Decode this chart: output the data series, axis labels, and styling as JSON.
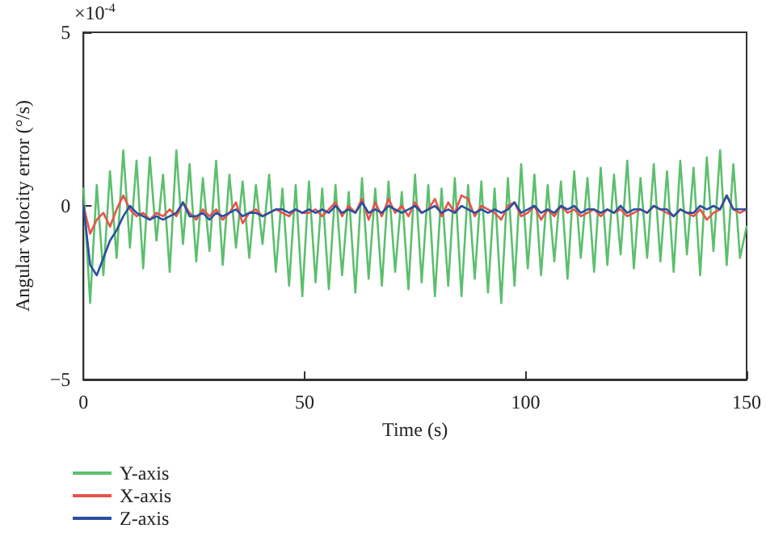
{
  "chart_data": {
    "type": "line",
    "xlabel": "Time (s)",
    "ylabel": "Angular velocity error (°/s)",
    "annotations": [
      "×10$^{-4}$"
    ],
    "x": [
      0,
      1.5,
      3,
      4.5,
      6,
      7.5,
      9,
      10.5,
      12,
      13.5,
      15,
      16.5,
      18,
      19.5,
      21,
      22.5,
      24,
      25.5,
      27,
      28.5,
      30,
      31.5,
      33,
      34.5,
      36,
      37.5,
      39,
      40.5,
      42,
      43.5,
      45,
      46.5,
      48,
      49.5,
      51,
      52.5,
      54,
      55.5,
      57,
      58.5,
      60,
      61.5,
      63,
      64.5,
      66,
      67.5,
      69,
      70.5,
      72,
      73.5,
      75,
      76.5,
      78,
      79.5,
      81,
      82.5,
      84,
      85.5,
      87,
      88.5,
      90,
      91.5,
      93,
      94.5,
      96,
      97.5,
      99,
      100.5,
      102,
      103.5,
      105,
      106.5,
      108,
      109.5,
      111,
      112.5,
      114,
      115.5,
      117,
      118.5,
      120,
      121.5,
      123,
      124.5,
      126,
      127.5,
      129,
      130.5,
      132,
      133.5,
      135,
      136.5,
      138,
      139.5,
      141,
      142.5,
      144,
      145.5,
      147,
      148.5,
      150
    ],
    "series": [
      {
        "name": "Y-axis",
        "color": "#5cbf6e",
        "values": [
          0.5,
          -2.8,
          0.6,
          -2.0,
          1.0,
          -1.5,
          1.6,
          -1.2,
          1.3,
          -1.8,
          1.4,
          -1.0,
          0.9,
          -1.9,
          1.6,
          -1.1,
          1.2,
          -1.6,
          0.8,
          -1.3,
          1.3,
          -1.7,
          0.9,
          -1.2,
          0.7,
          -1.5,
          0.6,
          -1.1,
          0.9,
          -1.9,
          0.5,
          -2.3,
          0.6,
          -2.6,
          0.7,
          -2.2,
          0.5,
          -2.4,
          0.6,
          -2.0,
          0.4,
          -2.5,
          0.8,
          -2.1,
          0.5,
          -2.3,
          0.7,
          -1.9,
          0.4,
          -2.4,
          0.9,
          -2.2,
          0.6,
          -2.6,
          0.5,
          -2.3,
          0.8,
          -2.6,
          0.6,
          -2.1,
          0.7,
          -2.5,
          0.5,
          -2.8,
          0.8,
          -2.3,
          1.2,
          -1.8,
          0.9,
          -2.0,
          0.6,
          -1.6,
          0.7,
          -2.1,
          1.0,
          -1.5,
          0.8,
          -1.9,
          1.1,
          -1.7,
          0.9,
          -1.4,
          1.3,
          -1.8,
          0.8,
          -1.5,
          1.2,
          -1.6,
          1.0,
          -1.9,
          1.3,
          -1.4,
          1.1,
          -2.0,
          1.4,
          -1.3,
          1.6,
          -1.7,
          1.2,
          -1.5,
          -0.6
        ]
      },
      {
        "name": "X-axis",
        "color": "#e8534a",
        "values": [
          0,
          -0.8,
          -0.4,
          -0.2,
          -0.6,
          -0.1,
          0.3,
          -0.1,
          -0.3,
          -0.2,
          -0.4,
          -0.2,
          -0.3,
          -0.1,
          -0.3,
          0.1,
          -0.2,
          -0.4,
          -0.1,
          -0.3,
          -0.1,
          -0.4,
          -0.2,
          0.1,
          -0.5,
          -0.2,
          -0.1,
          -0.3,
          -0.2,
          -0.1,
          -0.2,
          -0.3,
          -0.1,
          -0.2,
          -0.2,
          -0.1,
          -0.3,
          -0.1,
          0.1,
          -0.3,
          0,
          -0.2,
          0.2,
          -0.4,
          0.1,
          -0.3,
          0.2,
          -0.2,
          0,
          -0.3,
          0.1,
          -0.2,
          -0.1,
          0.2,
          -0.3,
          0.1,
          -0.2,
          0.3,
          0.2,
          -0.3,
          0,
          -0.1,
          -0.2,
          -0.4,
          0,
          0.1,
          -0.3,
          -0.2,
          0,
          -0.4,
          -0.1,
          -0.3,
          0,
          -0.2,
          -0.1,
          -0.3,
          -0.2,
          -0.1,
          -0.3,
          -0.1,
          -0.2,
          -0.1,
          -0.3,
          -0.2,
          -0.1,
          -0.2,
          0,
          -0.1,
          -0.2,
          -0.3,
          -0.1,
          -0.2,
          -0.3,
          -0.1,
          -0.4,
          -0.2,
          -0.1,
          0.3,
          -0.1,
          -0.2,
          -0.1
        ]
      },
      {
        "name": "Z-axis",
        "color": "#2b4fa0",
        "values": [
          0,
          -1.7,
          -2.0,
          -1.5,
          -1.0,
          -0.7,
          -0.3,
          0,
          -0.2,
          -0.3,
          -0.4,
          -0.3,
          -0.4,
          -0.3,
          -0.2,
          0.1,
          -0.3,
          -0.3,
          -0.2,
          -0.4,
          -0.2,
          -0.3,
          -0.2,
          -0.1,
          -0.3,
          -0.2,
          -0.2,
          -0.3,
          -0.2,
          -0.1,
          -0.1,
          -0.2,
          -0.1,
          -0.2,
          -0.1,
          -0.2,
          -0.1,
          -0.2,
          0,
          -0.2,
          -0.1,
          -0.2,
          0.1,
          -0.2,
          -0.1,
          -0.2,
          0,
          -0.1,
          -0.2,
          -0.1,
          0,
          -0.2,
          -0.1,
          0,
          -0.2,
          -0.1,
          -0.2,
          0,
          -0.1,
          -0.2,
          -0.1,
          -0.2,
          -0.1,
          -0.2,
          -0.1,
          0.1,
          -0.2,
          -0.1,
          0,
          -0.2,
          -0.1,
          -0.2,
          0,
          -0.1,
          0,
          -0.2,
          -0.1,
          -0.1,
          -0.2,
          -0.1,
          -0.2,
          0,
          -0.2,
          -0.1,
          -0.1,
          -0.2,
          0,
          -0.1,
          -0.1,
          -0.3,
          -0.1,
          -0.2,
          -0.2,
          0,
          -0.1,
          0,
          -0.1,
          0.3,
          -0.1,
          -0.1,
          -0.1
        ]
      }
    ],
    "xlim": [
      0,
      150
    ],
    "xticks": [
      0,
      50,
      100,
      150
    ],
    "ylim": [
      -5,
      5
    ],
    "yticks": [
      -5,
      0,
      5
    ],
    "grid": false,
    "legend": "bottom left",
    "marker": "none",
    "line_style": "solid"
  }
}
